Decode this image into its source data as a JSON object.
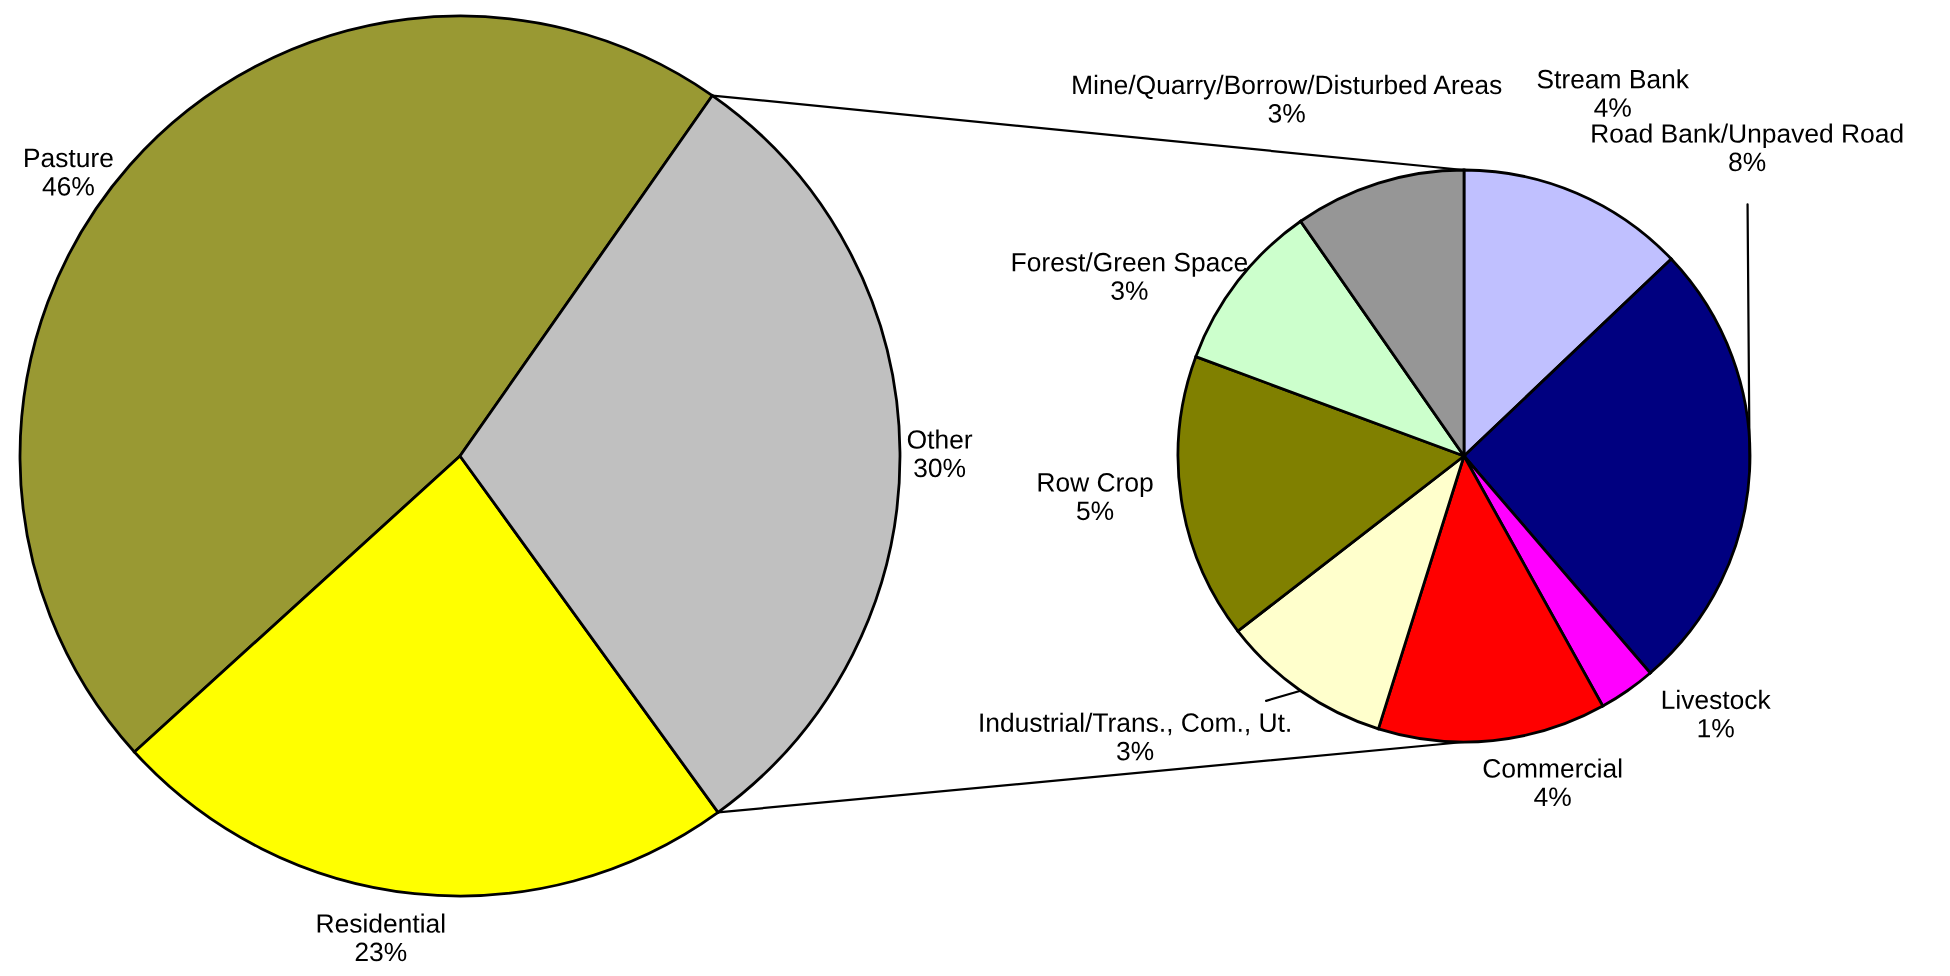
{
  "chart_data": [
    {
      "type": "pie",
      "categories": [
        "Pasture",
        "Residential",
        "Other"
      ],
      "values": [
        46,
        23,
        30
      ],
      "value_labels": [
        "46%",
        "23%",
        "30%"
      ],
      "colors": [
        "#999933",
        "#ffff00",
        "#c0c0c0"
      ]
    },
    {
      "type": "pie",
      "categories": [
        "Stream Bank",
        "Road Bank/Unpaved Road",
        "Livestock",
        "Commercial",
        "Industrial/Trans., Com., Ut.",
        "Row Crop",
        "Forest/Green Space",
        "Mine/Quarry/Borrow/Disturbed Areas"
      ],
      "values": [
        4,
        8,
        1,
        4,
        3,
        5,
        3,
        3
      ],
      "value_labels": [
        "4%",
        "8%",
        "1%",
        "4%",
        "3%",
        "5%",
        "3%",
        "3%"
      ],
      "colors": [
        "#c0c0ff",
        "#000080",
        "#ff00ff",
        "#ff0000",
        "#ffffcc",
        "#808000",
        "#ccffcc",
        "#969696"
      ]
    }
  ]
}
